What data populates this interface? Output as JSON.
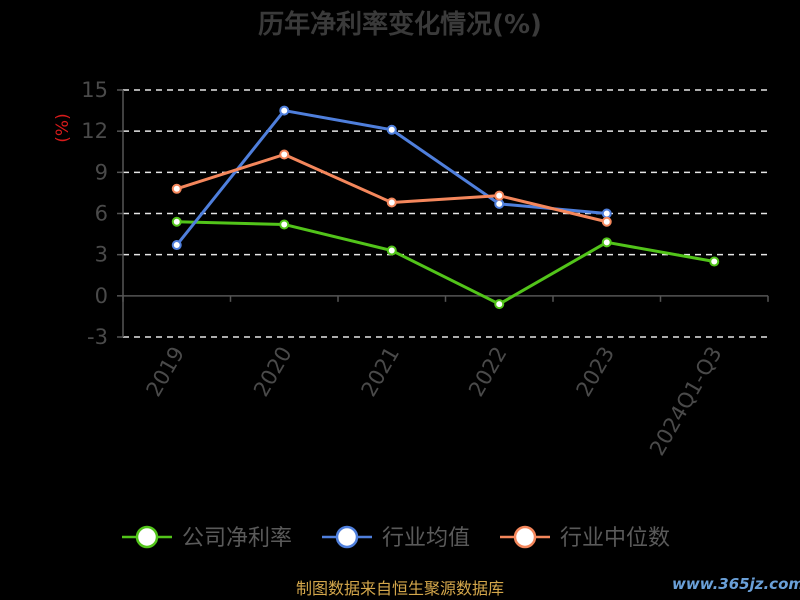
{
  "chart_data": {
    "type": "line",
    "title": "历年净利率变化情况(%)",
    "ylabel": "(%)",
    "categories": [
      "2019",
      "2020",
      "2021",
      "2022",
      "2023",
      "2024Q1-Q3"
    ],
    "ylim": [
      -3,
      15
    ],
    "yticks": [
      "15",
      "12",
      "9",
      "6",
      "3",
      "0",
      "-3"
    ],
    "grid": true,
    "legend_position": "bottom",
    "series": [
      {
        "name": "公司净利率",
        "color": "#52c41a",
        "values": [
          5.4,
          5.2,
          3.3,
          -0.6,
          3.9,
          2.5
        ]
      },
      {
        "name": "行业均值",
        "color": "#4f7fdc",
        "values": [
          3.7,
          13.5,
          12.1,
          6.7,
          6.0,
          null
        ]
      },
      {
        "name": "行业中位数",
        "color": "#f4875c",
        "values": [
          7.8,
          10.3,
          6.8,
          7.3,
          5.4,
          null
        ]
      }
    ]
  },
  "source_text": "制图数据来自恒生聚源数据库",
  "watermark_text": "www.365jz.com"
}
